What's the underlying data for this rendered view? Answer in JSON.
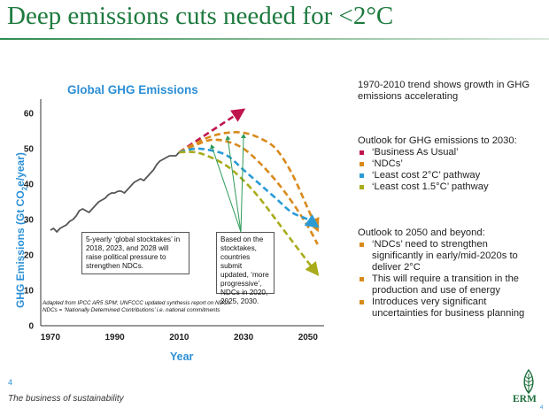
{
  "slide": {
    "title": "Deep emissions cuts needed for <2°C",
    "slide_number": "4",
    "footer": "The business of sustainability",
    "logo": "ERM",
    "corner_number": "4"
  },
  "chart_data": {
    "type": "line",
    "title": "Global GHG Emissions",
    "xlabel": "Year",
    "ylabel_main": "GHG Emissions (Gt CO",
    "ylabel_sub": "2",
    "ylabel_tail": "e/year)",
    "xlim": [
      1967,
      2055
    ],
    "ylim": [
      0,
      62
    ],
    "x_ticks": [
      1970,
      1990,
      2010,
      2030,
      2050
    ],
    "y_ticks": [
      0,
      10,
      20,
      30,
      40,
      50,
      60
    ],
    "grid": false,
    "series": [
      {
        "name": "historical",
        "color": "#555555",
        "style": "solid",
        "points": [
          [
            1970,
            27
          ],
          [
            1971,
            27.5
          ],
          [
            1972,
            26.5
          ],
          [
            1973,
            27.5
          ],
          [
            1974,
            28
          ],
          [
            1975,
            28.5
          ],
          [
            1976,
            29.5
          ],
          [
            1977,
            30
          ],
          [
            1978,
            31
          ],
          [
            1979,
            32.5
          ],
          [
            1980,
            33
          ],
          [
            1981,
            32.5
          ],
          [
            1982,
            32
          ],
          [
            1983,
            33
          ],
          [
            1984,
            34
          ],
          [
            1985,
            35
          ],
          [
            1986,
            35.5
          ],
          [
            1987,
            36
          ],
          [
            1988,
            37
          ],
          [
            1989,
            37.5
          ],
          [
            1990,
            37.5
          ],
          [
            1991,
            38
          ],
          [
            1992,
            38
          ],
          [
            1993,
            37.5
          ],
          [
            1994,
            38.5
          ],
          [
            1995,
            39.5
          ],
          [
            1996,
            40.5
          ],
          [
            1997,
            41
          ],
          [
            1998,
            41.5
          ],
          [
            1999,
            41
          ],
          [
            2000,
            42
          ],
          [
            2001,
            43
          ],
          [
            2002,
            44
          ],
          [
            2003,
            45.5
          ],
          [
            2004,
            46.5
          ],
          [
            2005,
            47
          ],
          [
            2006,
            47.5
          ],
          [
            2007,
            48
          ],
          [
            2008,
            48
          ],
          [
            2009,
            48
          ],
          [
            2010,
            49
          ]
        ]
      },
      {
        "name": "Business As Usual",
        "color": "#c0144c",
        "style": "dashed",
        "arrow": true,
        "points": [
          [
            2010,
            49
          ],
          [
            2015,
            52
          ],
          [
            2020,
            55
          ],
          [
            2025,
            58
          ],
          [
            2030,
            61
          ]
        ]
      },
      {
        "name": "NDCs",
        "color": "#d98a1c",
        "style": "dashed",
        "arrow": true,
        "points": [
          [
            2010,
            49
          ],
          [
            2015,
            51.5
          ],
          [
            2020,
            53.5
          ],
          [
            2025,
            54.5
          ],
          [
            2030,
            54.5
          ],
          [
            2035,
            53
          ],
          [
            2040,
            50
          ],
          [
            2045,
            43
          ],
          [
            2050,
            33
          ],
          [
            2053,
            27
          ]
        ]
      },
      {
        "name": "NDCs",
        "color": "#d98a1c",
        "style": "dashed",
        "arrow": false,
        "points": [
          [
            2010,
            49
          ],
          [
            2015,
            51
          ],
          [
            2020,
            52.5
          ],
          [
            2025,
            52
          ],
          [
            2030,
            50
          ],
          [
            2035,
            46
          ],
          [
            2040,
            41
          ],
          [
            2045,
            35
          ],
          [
            2050,
            28
          ],
          [
            2053,
            23
          ]
        ]
      },
      {
        "name": "Least cost 2°C",
        "color": "#2b9bd6",
        "style": "dashed",
        "arrow": true,
        "points": [
          [
            2010,
            49
          ],
          [
            2015,
            50
          ],
          [
            2020,
            49.5
          ],
          [
            2025,
            48
          ],
          [
            2030,
            44
          ],
          [
            2035,
            40
          ],
          [
            2040,
            36
          ],
          [
            2045,
            32
          ],
          [
            2050,
            30
          ],
          [
            2053,
            28
          ]
        ]
      },
      {
        "name": "Least cost 1.5°C",
        "color": "#a9ab1b",
        "style": "dashed",
        "arrow": true,
        "points": [
          [
            2010,
            49
          ],
          [
            2015,
            49
          ],
          [
            2020,
            47.5
          ],
          [
            2025,
            45
          ],
          [
            2030,
            41
          ],
          [
            2035,
            36
          ],
          [
            2040,
            30
          ],
          [
            2045,
            24
          ],
          [
            2050,
            18
          ],
          [
            2053,
            14.5
          ]
        ]
      }
    ],
    "annotations": {
      "box1": "5-yearly ‘global stocktakes’ in 2018, 2023, and 2028 will raise political pressure to strengthen NDCs.",
      "box2": "Based on the stocktakes, countries submit updated, ‘more progressive’, NDCs in 2020, 2025, 2030.",
      "source_line1": "Adapted from IPCC AR5 SPM; UNFCCC updated synthesis report on NDCs",
      "source_line2": "NDCs = ‘Nationally Determined Contributions’ i.e. national commitments",
      "box2_arrow_targets": [
        [
          2020,
          51.5
        ],
        [
          2025,
          54
        ],
        [
          2030,
          54.5
        ]
      ]
    }
  },
  "side": {
    "trend_text": "1970-2010 trend shows growth in GHG emissions accelerating",
    "outlook2030_heading": "Outlook for GHG emissions to 2030:",
    "outlook2030_items": [
      {
        "text": "‘Business As Usual’",
        "color": "#c0144c"
      },
      {
        "text": "‘NDCs’",
        "color": "#d98a1c"
      },
      {
        "text": "‘Least cost 2°C’ pathway",
        "color": "#2b9bd6"
      },
      {
        "text": "‘Least cost 1.5°C’ pathway",
        "color": "#a9ab1b"
      }
    ],
    "outlook2050_heading": "Outlook to 2050 and beyond:",
    "outlook2050_items": [
      {
        "text": "‘NDCs’ need to strengthen significantly in early/mid-2020s to deliver 2°C",
        "color": "#d98a1c"
      },
      {
        "text": "This will require a transition in the production and use of energy",
        "color": "#d98a1c"
      },
      {
        "text": "Introduces very significant uncertainties for business planning",
        "color": "#d98a1c"
      }
    ]
  }
}
